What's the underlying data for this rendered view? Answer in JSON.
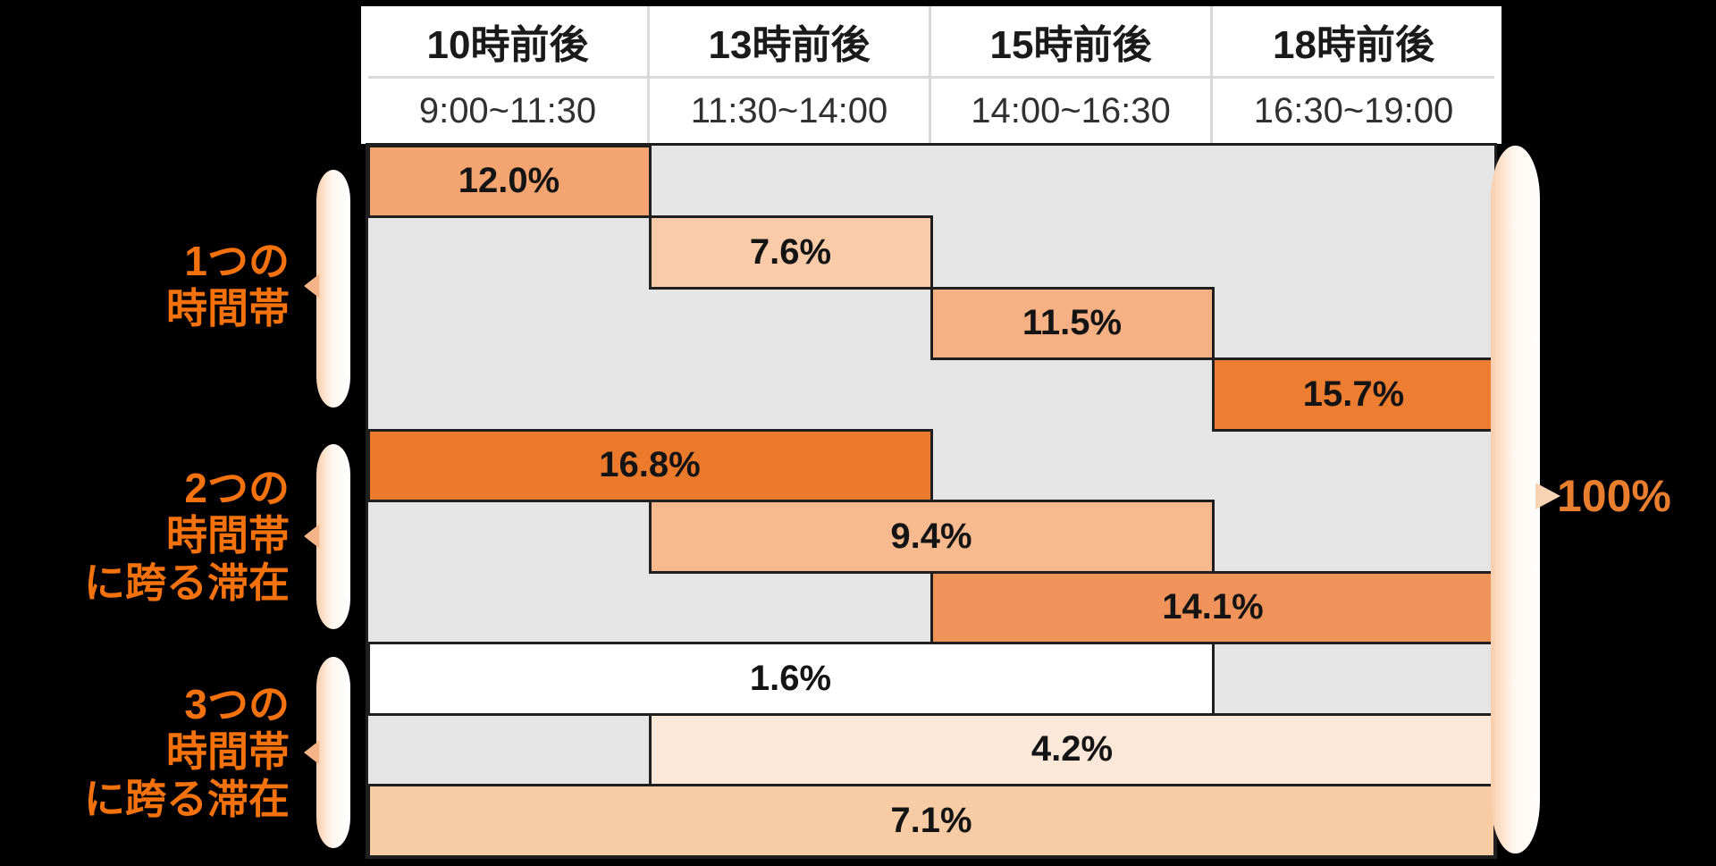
{
  "header": {
    "columns": [
      {
        "title": "10時前後",
        "time": "9:00~11:30"
      },
      {
        "title": "13時前後",
        "time": "11:30~14:00"
      },
      {
        "title": "15時前後",
        "time": "14:00~16:30"
      },
      {
        "title": "18時前後",
        "time": "16:30~19:00"
      }
    ]
  },
  "groups": [
    {
      "lines": "1つの\n時間帯"
    },
    {
      "lines": "2つの\n時間帯\nに跨る滞在"
    },
    {
      "lines": "3つの\n時間帯\nに跨る滞在"
    }
  ],
  "bars": [
    {
      "label": "12.0%",
      "row": 0,
      "col": 0,
      "span": 1,
      "color": "#F4A470"
    },
    {
      "label": "7.6%",
      "row": 1,
      "col": 1,
      "span": 1,
      "color": "#FACBA9"
    },
    {
      "label": "11.5%",
      "row": 2,
      "col": 2,
      "span": 1,
      "color": "#F5B183"
    },
    {
      "label": "15.7%",
      "row": 3,
      "col": 3,
      "span": 1,
      "color": "#ED7E31"
    },
    {
      "label": "16.8%",
      "row": 4,
      "col": 0,
      "span": 2,
      "color": "#EC7A2D"
    },
    {
      "label": "9.4%",
      "row": 5,
      "col": 1,
      "span": 2,
      "color": "#F7BA8E"
    },
    {
      "label": "14.1%",
      "row": 6,
      "col": 2,
      "span": 2,
      "color": "#F0935A"
    },
    {
      "label": "1.6%",
      "row": 7,
      "col": 0,
      "span": 3,
      "color": "#FFFFFF"
    },
    {
      "label": "4.2%",
      "row": 8,
      "col": 1,
      "span": 3,
      "color": "#FCE8D9"
    },
    {
      "label": "7.1%",
      "row": 9,
      "col": 0,
      "span": 4,
      "color": "#F7CBA4"
    }
  ],
  "total_label": "100%",
  "colors": {
    "background": "#000000",
    "grid_background": "#E6E5E5",
    "bar_border": "#1F1F1F",
    "header_divider": "#D9D9D9",
    "group_label_orange": "#F3720E",
    "total_orange": "#E97E2F",
    "brace_peach": "#F8CDAB",
    "strong_orange": "#ED7D31"
  },
  "chart_data": {
    "type": "table",
    "columns": [
      "10時前後",
      "13時前後",
      "15時前後",
      "18時前後"
    ],
    "column_time_ranges": [
      "9:00~11:30",
      "11:30~14:00",
      "14:00~16:30",
      "16:30~19:00"
    ],
    "row_groups": [
      {
        "group": "1つの時間帯",
        "bars": [
          {
            "value": 12.0,
            "time_slots": [
              "10時前後"
            ]
          },
          {
            "value": 7.6,
            "time_slots": [
              "13時前後"
            ]
          },
          {
            "value": 11.5,
            "time_slots": [
              "15時前後"
            ]
          },
          {
            "value": 15.7,
            "time_slots": [
              "18時前後"
            ]
          }
        ]
      },
      {
        "group": "2つの時間帯に跨る滞在",
        "bars": [
          {
            "value": 16.8,
            "time_slots": [
              "10時前後",
              "13時前後"
            ]
          },
          {
            "value": 9.4,
            "time_slots": [
              "13時前後",
              "15時前後"
            ]
          },
          {
            "value": 14.1,
            "time_slots": [
              "15時前後",
              "18時前後"
            ]
          }
        ]
      },
      {
        "group": "3つの時間帯に跨る滞在",
        "bars": [
          {
            "value": 1.6,
            "time_slots": [
              "10時前後",
              "13時前後",
              "15時前後"
            ]
          },
          {
            "value": 4.2,
            "time_slots": [
              "13時前後",
              "15時前後",
              "18時前後"
            ]
          },
          {
            "value": 7.1,
            "time_slots": [
              "10時前後",
              "13時前後",
              "15時前後",
              "18時前後"
            ]
          }
        ]
      }
    ],
    "total": "100%",
    "values_unit": "%",
    "title": "",
    "legend": "none",
    "grid": "off"
  }
}
